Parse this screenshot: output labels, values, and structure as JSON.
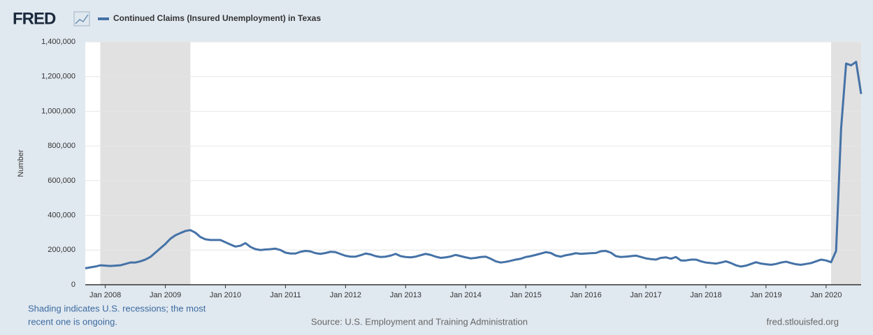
{
  "chart_data": {
    "type": "line",
    "title": "Continued Claims (Insured Unemployment) in Texas",
    "logo": "FRED",
    "ylabel": "Number",
    "note_lines": [
      "Shading indicates U.S. recessions; the most",
      "recent one is ongoing."
    ],
    "source": "Source: U.S. Employment and Training Administration",
    "site": "fred.stlouisfed.org",
    "xlim": [
      "2007-09",
      "2020-08"
    ],
    "xticks": [
      {
        "value": "2008-01",
        "label": "Jan 2008"
      },
      {
        "value": "2009-01",
        "label": "Jan 2009"
      },
      {
        "value": "2010-01",
        "label": "Jan 2010"
      },
      {
        "value": "2011-01",
        "label": "Jan 2011"
      },
      {
        "value": "2012-01",
        "label": "Jan 2012"
      },
      {
        "value": "2013-01",
        "label": "Jan 2013"
      },
      {
        "value": "2014-01",
        "label": "Jan 2014"
      },
      {
        "value": "2015-01",
        "label": "Jan 2015"
      },
      {
        "value": "2016-01",
        "label": "Jan 2016"
      },
      {
        "value": "2017-01",
        "label": "Jan 2017"
      },
      {
        "value": "2018-01",
        "label": "Jan 2018"
      },
      {
        "value": "2019-01",
        "label": "Jan 2019"
      },
      {
        "value": "2020-01",
        "label": "Jan 2020"
      }
    ],
    "ylim": [
      0,
      1400000
    ],
    "yticks": [
      0,
      {
        "value": 200000,
        "label": "200,000"
      },
      {
        "value": 400000,
        "label": "400,000"
      },
      {
        "value": 600000,
        "label": "600,000"
      },
      {
        "value": 800000,
        "label": "800,000"
      },
      {
        "value": 1000000,
        "label": "1,000,000"
      },
      {
        "value": 1200000,
        "label": "1,200,000"
      },
      {
        "value": 1400000,
        "label": "1,400,000"
      }
    ],
    "grid": true,
    "recessions": [
      {
        "start": "2007-12",
        "end": "2009-06"
      },
      {
        "start": "2020-02",
        "end": "2020-08"
      }
    ],
    "recession_color": "#e1e1e1",
    "x": [
      "2007-09",
      "2007-10",
      "2007-11",
      "2007-12",
      "2008-01",
      "2008-02",
      "2008-03",
      "2008-04",
      "2008-05",
      "2008-06",
      "2008-07",
      "2008-08",
      "2008-09",
      "2008-10",
      "2008-11",
      "2008-12",
      "2009-01",
      "2009-02",
      "2009-03",
      "2009-04",
      "2009-05",
      "2009-06",
      "2009-07",
      "2009-08",
      "2009-09",
      "2009-10",
      "2009-11",
      "2009-12",
      "2010-01",
      "2010-02",
      "2010-03",
      "2010-04",
      "2010-05",
      "2010-06",
      "2010-07",
      "2010-08",
      "2010-09",
      "2010-10",
      "2010-11",
      "2010-12",
      "2011-01",
      "2011-02",
      "2011-03",
      "2011-04",
      "2011-05",
      "2011-06",
      "2011-07",
      "2011-08",
      "2011-09",
      "2011-10",
      "2011-11",
      "2011-12",
      "2012-01",
      "2012-02",
      "2012-03",
      "2012-04",
      "2012-05",
      "2012-06",
      "2012-07",
      "2012-08",
      "2012-09",
      "2012-10",
      "2012-11",
      "2012-12",
      "2013-01",
      "2013-02",
      "2013-03",
      "2013-04",
      "2013-05",
      "2013-06",
      "2013-07",
      "2013-08",
      "2013-09",
      "2013-10",
      "2013-11",
      "2013-12",
      "2014-01",
      "2014-02",
      "2014-03",
      "2014-04",
      "2014-05",
      "2014-06",
      "2014-07",
      "2014-08",
      "2014-09",
      "2014-10",
      "2014-11",
      "2014-12",
      "2015-01",
      "2015-02",
      "2015-03",
      "2015-04",
      "2015-05",
      "2015-06",
      "2015-07",
      "2015-08",
      "2015-09",
      "2015-10",
      "2015-11",
      "2015-12",
      "2016-01",
      "2016-02",
      "2016-03",
      "2016-04",
      "2016-05",
      "2016-06",
      "2016-07",
      "2016-08",
      "2016-09",
      "2016-10",
      "2016-11",
      "2016-12",
      "2017-01",
      "2017-02",
      "2017-03",
      "2017-04",
      "2017-05",
      "2017-06",
      "2017-07",
      "2017-08",
      "2017-09",
      "2017-10",
      "2017-11",
      "2017-12",
      "2018-01",
      "2018-02",
      "2018-03",
      "2018-04",
      "2018-05",
      "2018-06",
      "2018-07",
      "2018-08",
      "2018-09",
      "2018-10",
      "2018-11",
      "2018-12",
      "2019-01",
      "2019-02",
      "2019-03",
      "2019-04",
      "2019-05",
      "2019-06",
      "2019-07",
      "2019-08",
      "2019-09",
      "2019-10",
      "2019-11",
      "2019-12",
      "2020-01",
      "2020-02",
      "2020-03",
      "2020-04",
      "2020-05",
      "2020-06",
      "2020-07",
      "2020-08"
    ],
    "series": [
      {
        "name": "Continued Claims (Insured Unemployment) in Texas",
        "color": "#4572a7",
        "values": [
          95000,
          100000,
          105000,
          112000,
          110000,
          108000,
          110000,
          112000,
          120000,
          128000,
          128000,
          135000,
          145000,
          160000,
          185000,
          210000,
          235000,
          265000,
          285000,
          298000,
          310000,
          315000,
          300000,
          275000,
          262000,
          258000,
          258000,
          258000,
          245000,
          232000,
          220000,
          225000,
          240000,
          218000,
          205000,
          200000,
          203000,
          205000,
          208000,
          200000,
          185000,
          180000,
          180000,
          190000,
          195000,
          192000,
          182000,
          178000,
          183000,
          190000,
          188000,
          177000,
          167000,
          162000,
          162000,
          170000,
          180000,
          175000,
          165000,
          160000,
          162000,
          168000,
          178000,
          165000,
          160000,
          158000,
          162000,
          170000,
          178000,
          172000,
          162000,
          155000,
          158000,
          163000,
          172000,
          165000,
          158000,
          152000,
          155000,
          160000,
          162000,
          150000,
          135000,
          128000,
          132000,
          138000,
          145000,
          150000,
          160000,
          165000,
          172000,
          180000,
          188000,
          183000,
          168000,
          162000,
          170000,
          175000,
          182000,
          178000,
          180000,
          182000,
          183000,
          193000,
          195000,
          185000,
          165000,
          160000,
          162000,
          165000,
          168000,
          160000,
          152000,
          148000,
          145000,
          155000,
          158000,
          150000,
          160000,
          140000,
          140000,
          145000,
          145000,
          135000,
          128000,
          125000,
          122000,
          128000,
          135000,
          125000,
          112000,
          105000,
          110000,
          120000,
          130000,
          122000,
          118000,
          115000,
          120000,
          128000,
          133000,
          125000,
          118000,
          115000,
          120000,
          125000,
          135000,
          145000,
          140000,
          130000,
          195000,
          900000,
          1275000,
          1265000,
          1285000,
          1100000
        ]
      }
    ]
  }
}
